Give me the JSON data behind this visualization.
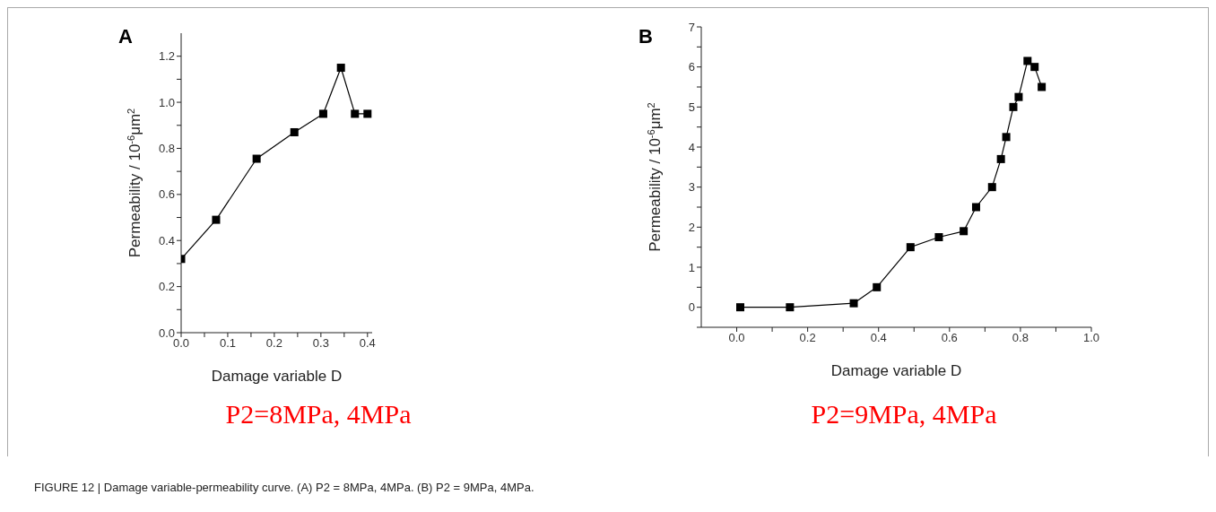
{
  "chart_data": [
    {
      "type": "line",
      "title": "A",
      "xlabel": "Damage variable D",
      "ylabel": "Permeability / 10$^{-6}$μm$^{2}$",
      "x": [
        0,
        0.075,
        0.162,
        0.243,
        0.305,
        0.343,
        0.373,
        0.4
      ],
      "series": [
        {
          "color": "#000000",
          "values": [
            0.32,
            0.49,
            0.755,
            0.87,
            0.95,
            1.15,
            0.95,
            0.95
          ]
        }
      ],
      "xlim": [
        0,
        0.41
      ],
      "ylim": [
        0,
        1.3
      ],
      "xticks": [
        {
          "value": 0,
          "label": "0.0"
        },
        {
          "value": 0.05,
          "label": null
        },
        {
          "value": 0.1,
          "label": "0.1"
        },
        {
          "value": 0.15,
          "label": null
        },
        {
          "value": 0.2,
          "label": "0.2"
        },
        {
          "value": 0.25,
          "label": null
        },
        {
          "value": 0.3,
          "label": "0.3"
        },
        {
          "value": 0.35,
          "label": null
        },
        {
          "value": 0.4,
          "label": "0.4"
        }
      ],
      "yticks": [
        {
          "value": 0,
          "label": "0.0"
        },
        {
          "value": 0.1,
          "label": null
        },
        {
          "value": 0.2,
          "label": "0.2"
        },
        {
          "value": 0.3,
          "label": null
        },
        {
          "value": 0.4,
          "label": "0.4"
        },
        {
          "value": 0.5,
          "label": null
        },
        {
          "value": 0.6,
          "label": "0.6"
        },
        {
          "value": 0.7,
          "label": null
        },
        {
          "value": 0.8,
          "label": "0.8"
        },
        {
          "value": 0.9,
          "label": null
        },
        {
          "value": 1.0,
          "label": "1.0"
        },
        {
          "value": 1.1,
          "label": null
        },
        {
          "value": 1.2,
          "label": "1.2"
        }
      ],
      "marker": "square",
      "grid": false,
      "legend": false,
      "annotations": [
        "P2=8MPa, 4MPa",
        "FIGURE 12 | Damage variable-permeability curve. (A) P2 = 8MPa, 4MPa. (B) P2 = 9MPa, 4MPa."
      ]
    },
    {
      "type": "line",
      "title": "B",
      "xlabel": "Damage variable D",
      "ylabel": "Permeability / 10$^{-6}$μm$^{2}$",
      "x": [
        0.01,
        0.15,
        0.33,
        0.395,
        0.49,
        0.57,
        0.64,
        0.675,
        0.72,
        0.745,
        0.76,
        0.78,
        0.795,
        0.82,
        0.84,
        0.86
      ],
      "series": [
        {
          "color": "#000000",
          "values": [
            0,
            0,
            0.1,
            0.5,
            1.5,
            1.75,
            1.9,
            2.5,
            3.0,
            3.7,
            4.25,
            5.0,
            5.25,
            6.15,
            6.0,
            5.5
          ]
        }
      ],
      "xlim": [
        -0.1,
        1.0
      ],
      "ylim": [
        -0.5,
        7
      ],
      "xticks": [
        {
          "value": 0,
          "label": "0.0"
        },
        {
          "value": 0.1,
          "label": null
        },
        {
          "value": 0.2,
          "label": "0.2"
        },
        {
          "value": 0.3,
          "label": null
        },
        {
          "value": 0.4,
          "label": "0.4"
        },
        {
          "value": 0.5,
          "label": null
        },
        {
          "value": 0.6,
          "label": "0.6"
        },
        {
          "value": 0.7,
          "label": null
        },
        {
          "value": 0.8,
          "label": "0.8"
        },
        {
          "value": 0.9,
          "label": null
        },
        {
          "value": 1.0,
          "label": "1.0"
        }
      ],
      "yticks": [
        {
          "value": -0.5,
          "label": null
        },
        0,
        {
          "value": 0.5,
          "label": null
        },
        1,
        {
          "value": 1.5,
          "label": null
        },
        2,
        {
          "value": 2.5,
          "label": null
        },
        3,
        {
          "value": 3.5,
          "label": null
        },
        4,
        {
          "value": 4.5,
          "label": null
        },
        5,
        {
          "value": 5.5,
          "label": null
        },
        6,
        {
          "value": 6.5,
          "label": null
        },
        7
      ],
      "marker": "square",
      "grid": false,
      "legend": false,
      "annotations": [
        "P2=9MPa, 4MPa"
      ]
    }
  ]
}
